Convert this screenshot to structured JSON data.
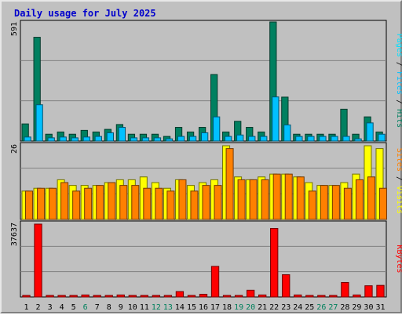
{
  "chart_data": {
    "type": "bar",
    "title": "Daily usage for July 2025",
    "categories": [
      "1",
      "2",
      "3",
      "4",
      "5",
      "6",
      "7",
      "8",
      "9",
      "10",
      "11",
      "12",
      "13",
      "14",
      "15",
      "16",
      "17",
      "18",
      "19",
      "20",
      "21",
      "22",
      "23",
      "24",
      "25",
      "26",
      "27",
      "28",
      "29",
      "30",
      "31"
    ],
    "weekend_categories": [
      "6",
      "12",
      "13",
      "19",
      "20",
      "26",
      "27"
    ],
    "grid": true,
    "panels": [
      {
        "name": "hits-files-pages",
        "max_label": "591",
        "axis_label": "Pages / Files / Hits",
        "ymax": 591,
        "series": [
          {
            "name": "Hits",
            "color": "#008060",
            "values": [
              85,
              515,
              34,
              45,
              34,
              53,
              45,
              58,
              82,
              34,
              34,
              34,
              23,
              68,
              45,
              68,
              330,
              45,
              98,
              68,
              45,
              591,
              218,
              34,
              34,
              34,
              34,
              158,
              34,
              120,
              45
            ]
          },
          {
            "name": "Files",
            "color": "#00c0ff",
            "values": [
              20,
              180,
              16,
              20,
              16,
              20,
              23,
              41,
              68,
              16,
              16,
              16,
              11,
              23,
              23,
              41,
              120,
              23,
              30,
              23,
              23,
              219,
              80,
              23,
              23,
              23,
              23,
              23,
              11,
              90,
              34
            ]
          },
          {
            "name": "Pages",
            "color": "#00e0ff",
            "values": [
              0,
              0,
              0,
              0,
              0,
              0,
              0,
              0,
              0,
              0,
              0,
              0,
              0,
              0,
              0,
              0,
              0,
              0,
              0,
              0,
              0,
              0,
              0,
              0,
              0,
              0,
              0,
              0,
              0,
              0,
              0
            ]
          }
        ]
      },
      {
        "name": "sites-visits",
        "max_label": "26",
        "axis_label": "Sites / Visits",
        "ymax": 26,
        "series": [
          {
            "name": "Visits",
            "color": "#ffff00",
            "values": [
              10,
              11,
              11,
              14,
              12,
              12,
              12,
              13,
              14,
              14,
              15,
              13,
              11,
              14,
              12,
              13,
              14,
              26,
              15,
              14,
              15,
              16,
              16,
              15,
              13,
              12,
              12,
              13,
              16,
              26,
              25
            ]
          },
          {
            "name": "Sites",
            "color": "#ff8000",
            "values": [
              10,
              11,
              11,
              13,
              10,
              11,
              12,
              13,
              12,
              12,
              11,
              11,
              10,
              14,
              10,
              12,
              12,
              25,
              14,
              14,
              14,
              16,
              16,
              15,
              10,
              12,
              12,
              11,
              14,
              15,
              11
            ]
          }
        ]
      },
      {
        "name": "kbytes",
        "max_label": "37637",
        "axis_label": "KBytes",
        "ymax": 37637,
        "series": [
          {
            "name": "KBytes",
            "color": "#ff0000",
            "values": [
              700,
              37637,
              350,
              350,
              350,
              1050,
              350,
              700,
              1050,
              350,
              350,
              350,
              350,
              2800,
              700,
              1400,
              15800,
              700,
              700,
              3500,
              1050,
              35400,
              11500,
              1050,
              700,
              700,
              700,
              7500,
              1050,
              5800,
              6000
            ]
          }
        ]
      }
    ]
  },
  "colors": {
    "background": "#c0c0c0",
    "plot_bg": "#c0c0c0",
    "grid": "#808080",
    "title": "#0000cc",
    "axis_text": "#000000",
    "weekend_text": "#00805c"
  }
}
